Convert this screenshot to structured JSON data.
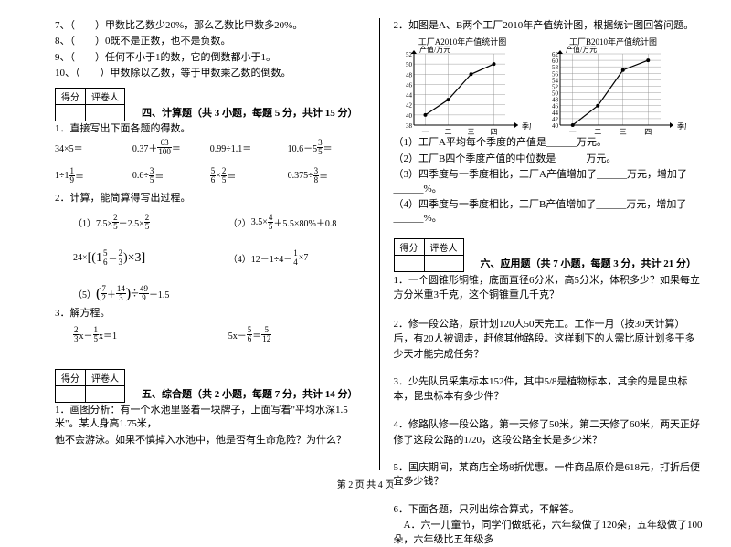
{
  "left": {
    "tf": [
      "7、（　　）甲数比乙数少20%，那么乙数比甲数多20%。",
      "8、（　　）0既不是正数，也不是负数。",
      "9、（　　）任何不小于1的数，它的倒数都小于1。",
      "10、（　　）甲数除以乙数，等于甲数乘乙数的倒数。"
    ],
    "score_labels": [
      "得分",
      "评卷人"
    ],
    "section4": "四、计算题（共 3 小题，每题 5 分，共计 15 分）",
    "calc1_title": "1．直接写出下面各题的得数。",
    "calc1_row1": [
      "34×5＝",
      "0.37＋",
      "63",
      "100",
      "＝",
      "0.99÷1.1＝",
      "10.6－5",
      "3",
      "5",
      "＝"
    ],
    "calc1_row2": [
      "1÷1",
      "1",
      "9",
      "＝",
      "0.6÷",
      "3",
      "5",
      "＝",
      "5",
      "6",
      "×",
      "2",
      "5",
      "＝",
      "0.375÷",
      "3",
      "8",
      "＝"
    ],
    "calc2_title": "2．计算，能简算得写出过程。",
    "calc2_e1a": "（1）7.5×",
    "calc2_e1b": "2",
    "calc2_e1c": "5",
    "calc2_e1d": "－2.5×",
    "calc2_e1e": "2",
    "calc2_e1f": "5",
    "calc2_e2a": "（2）",
    "calc2_e2b": "3.5×",
    "calc2_e2c": "4",
    "calc2_e2d": "5",
    "calc2_e2e": "＋5.5×80%＋0.8",
    "calc2_e3a": "24×",
    "calc2_e3b": "[(1",
    "calc2_e3c": "5",
    "calc2_e3d": "6",
    "calc2_e3e": "－",
    "calc2_e3f": "2",
    "calc2_e3g": "3",
    "calc2_e3h": ")×3]",
    "calc2_e4a": "（4）12－1÷4－",
    "calc2_e4b": "1",
    "calc2_e4c": "4",
    "calc2_e4d": "×7",
    "calc2_e5a": "（5）",
    "calc2_e5b": "(",
    "calc2_e5c": "7",
    "calc2_e5d": "2",
    "calc2_e5e": "＋",
    "calc2_e5f": "14",
    "calc2_e5g": "3",
    "calc2_e5h": ")÷",
    "calc2_e5i": "49",
    "calc2_e5j": "9",
    "calc2_e5k": "－1.5",
    "calc3_title": "3．解方程。",
    "calc3_e1a": "2",
    "calc3_e1b": "3",
    "calc3_e1c": " x－",
    "calc3_e1d": "1",
    "calc3_e1e": "5",
    "calc3_e1f": " x＝1",
    "calc3_e2a": "5x－",
    "calc3_e2b": "5",
    "calc3_e2c": "6",
    "calc3_e2d": "＝",
    "calc3_e2e": "5",
    "calc3_e2f": "12",
    "section5": "五、综合题（共 2 小题，每题 7 分，共计 14 分）",
    "q5_1a": "1．画图分析：有一个水池里竖着一块牌子，上面写着\"平均水深1.5米\"。某人身高1.75米，",
    "q5_1b": "他不会游泳。如果不慎掉入水池中，他是否有生命危险？为什么？"
  },
  "right": {
    "q2_intro": "2．如图是A、B两个工厂2010年产值统计图，根据统计图回答问题。",
    "chartA": {
      "title": "工厂A2010年产值统计图",
      "ylabel": "产值/万元",
      "xlabel": "季度",
      "xticks": [
        "一",
        "二",
        "三",
        "四"
      ],
      "ymin": 38,
      "ymax": 52,
      "ystep": 2,
      "values": [
        40,
        43,
        48,
        50
      ],
      "line_color": "#000000",
      "grid_color": "#888888",
      "bg": "#ffffff"
    },
    "chartB": {
      "title": "工厂B2010年产值统计图",
      "ylabel": "产值/万元",
      "xlabel": "季度",
      "xticks": [
        "一",
        "二",
        "三",
        "四"
      ],
      "ymin": 40,
      "ymax": 62,
      "ystep": 2,
      "values": [
        40,
        46,
        57,
        60
      ],
      "line_color": "#000000",
      "grid_color": "#888888",
      "bg": "#ffffff"
    },
    "chart_q": [
      "（1）工厂A平均每个季度的产值是______万元。",
      "（2）工厂B四个季度产值的中位数是______万元。",
      "（3）四季度与一季度相比，工厂A产值增加了______万元，增加了______%。",
      "（4）四季度与一季度相比，工厂B产值增加了______万元，增加了______%。"
    ],
    "section6": "六、应用题（共 7 小题，每题 3 分，共计 21 分）",
    "q6": [
      "1．一个圆锥形铜锥，底面直径6分米，高5分米，体积多少？如果每立方分米重3千克，这个铜锥重几千克？",
      "2．修一段公路，原计划120人50天完工。工作一月（按30天计算）后，有20人被调走，赶修其他路段。这样剩下的人需比原计划多干多少天才能完成任务？",
      "3．少先队员采集标本152件，其中5/8是植物标本，其余的是昆虫标本，昆虫标本有多少件？",
      "4．修路队修一段公路，第一天修了50米，第二天修了60米，两天正好修了这段公路的1/20，这段公路全长是多少米？",
      "5．国庆期间，某商店全场8折优惠。一件商品原价是618元，打折后便宜多少钱？",
      "6．下面各题，只列出综合算式，不解答。",
      "　A．六一儿童节，同学们做纸花，六年级做了120朵，五年级做了100朵，六年级比五年级多"
    ]
  },
  "footer": "第 2 页 共 4 页"
}
